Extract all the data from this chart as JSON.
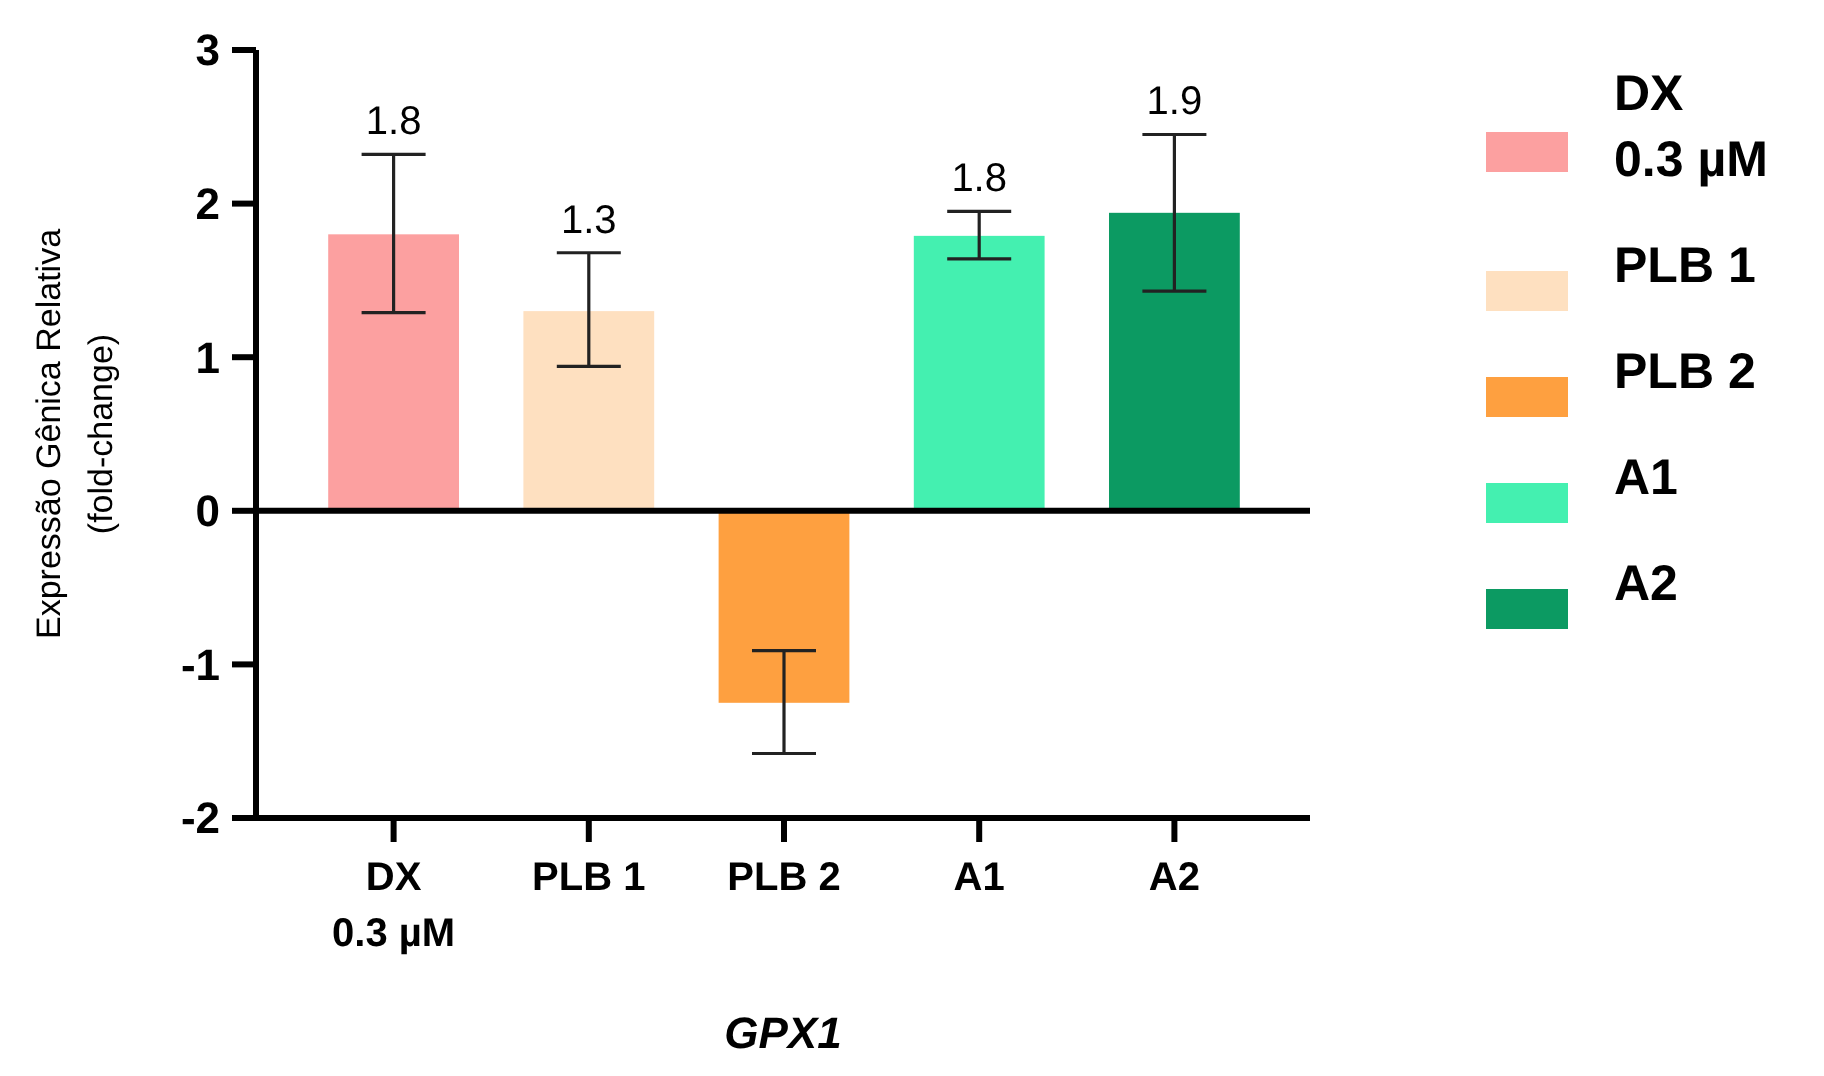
{
  "chart_data": {
    "type": "bar",
    "xlabel": "GPX1",
    "ylabel": "Expressão Gênica Relativa\n(fold-change)",
    "categories": [
      "DX\n0.3 µM",
      "PLB 1",
      "PLB 2",
      "A1",
      "A2"
    ],
    "series": [
      {
        "name": "DX\n0.3 µM",
        "color": "#fca0a0",
        "values": [
          1.8,
          null,
          null,
          null,
          null
        ],
        "errors": [
          [
            1.29,
            2.32
          ],
          null,
          null,
          null,
          null
        ],
        "value_labels": [
          "1.8",
          null,
          null,
          null,
          null
        ]
      },
      {
        "name": "PLB 1",
        "color": "#fee0c0",
        "values": [
          null,
          1.3,
          null,
          null,
          null
        ],
        "errors": [
          null,
          [
            0.94,
            1.68
          ],
          null,
          null,
          null
        ],
        "value_labels": [
          null,
          "1.3",
          null,
          null,
          null
        ]
      },
      {
        "name": "PLB 2",
        "color": "#fea040",
        "values": [
          null,
          null,
          -1.25,
          null,
          null
        ],
        "errors": [
          null,
          null,
          [
            -1.58,
            -0.91
          ],
          null,
          null
        ]
      },
      {
        "name": "A1",
        "color": "#44f0b0",
        "values": [
          null,
          null,
          null,
          1.79,
          null
        ],
        "errors": [
          null,
          null,
          null,
          [
            1.64,
            1.95
          ],
          null
        ],
        "value_labels": [
          null,
          null,
          null,
          "1.8",
          null
        ]
      },
      {
        "name": "A2",
        "color": "#0c9a62",
        "values": [
          null,
          null,
          null,
          null,
          1.94
        ],
        "errors": [
          null,
          null,
          null,
          null,
          [
            1.43,
            2.45
          ]
        ],
        "value_labels": [
          null,
          null,
          null,
          null,
          "1.9"
        ]
      }
    ],
    "ref_lines": [
      {
        "axis": "y",
        "value": 0
      }
    ],
    "ylim": [
      -2,
      3
    ],
    "yticks": [
      -2,
      -1,
      0,
      1,
      2,
      3
    ],
    "legend": "right"
  }
}
